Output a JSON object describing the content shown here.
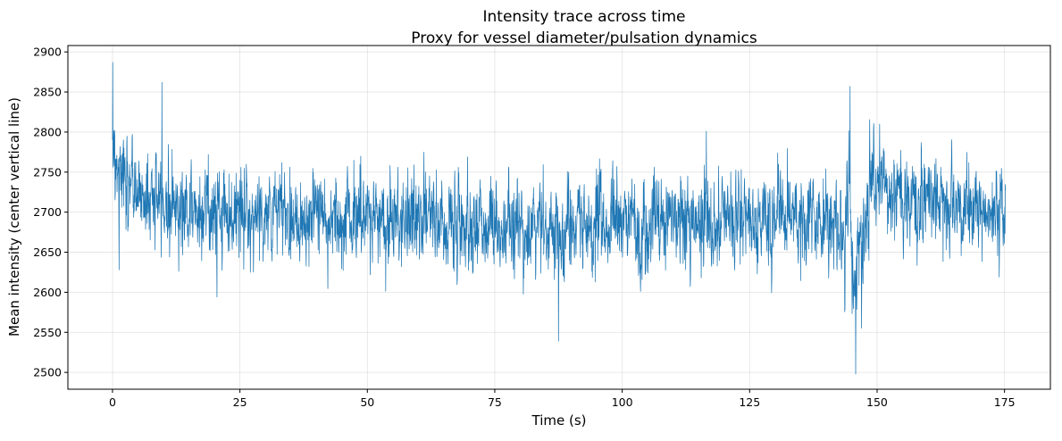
{
  "chart_data": {
    "type": "line",
    "title": "Intensity trace across time",
    "subtitle": "Proxy for vessel diameter/pulsation dynamics",
    "xlabel": "Time (s)",
    "ylabel": "Mean intensity (center vertical line)",
    "xlim": [
      -8.75,
      184
    ],
    "ylim": [
      2479,
      2908
    ],
    "xticks": [
      0,
      25,
      50,
      75,
      100,
      125,
      150,
      175
    ],
    "yticks": [
      2500,
      2550,
      2600,
      2650,
      2700,
      2750,
      2800,
      2850,
      2900
    ],
    "grid": true,
    "line_color": "#1f77b4",
    "series": [
      {
        "x_range": [
          0,
          175.2
        ],
        "sample_step": 0.05,
        "baseline": [
          [
            0,
            2775
          ],
          [
            0.5,
            2755
          ],
          [
            2,
            2738
          ],
          [
            5,
            2725
          ],
          [
            10,
            2712
          ],
          [
            15,
            2705
          ],
          [
            20,
            2700
          ],
          [
            30,
            2698
          ],
          [
            40,
            2695
          ],
          [
            50,
            2693
          ],
          [
            60,
            2692
          ],
          [
            70,
            2686
          ],
          [
            80,
            2680
          ],
          [
            90,
            2677
          ],
          [
            100,
            2685
          ],
          [
            110,
            2690
          ],
          [
            120,
            2693
          ],
          [
            130,
            2690
          ],
          [
            140,
            2688
          ],
          [
            143,
            2690
          ],
          [
            144,
            2698
          ],
          [
            144.6,
            2740
          ],
          [
            145.1,
            2650
          ],
          [
            145.6,
            2610
          ],
          [
            146.2,
            2640
          ],
          [
            147,
            2680
          ],
          [
            148.5,
            2715
          ],
          [
            150,
            2725
          ],
          [
            155,
            2720
          ],
          [
            160,
            2715
          ],
          [
            165,
            2705
          ],
          [
            170,
            2700
          ],
          [
            175.2,
            2698
          ]
        ],
        "noise_sd": 28,
        "extremes": [
          {
            "x": 0.05,
            "y": 2887
          },
          {
            "x": 1.3,
            "y": 2628
          },
          {
            "x": 9.7,
            "y": 2862
          },
          {
            "x": 87.5,
            "y": 2539
          },
          {
            "x": 144.7,
            "y": 2857
          },
          {
            "x": 145.8,
            "y": 2498
          },
          {
            "x": 116.5,
            "y": 2801
          },
          {
            "x": 150.5,
            "y": 2810
          },
          {
            "x": 20.5,
            "y": 2594
          }
        ]
      }
    ]
  }
}
